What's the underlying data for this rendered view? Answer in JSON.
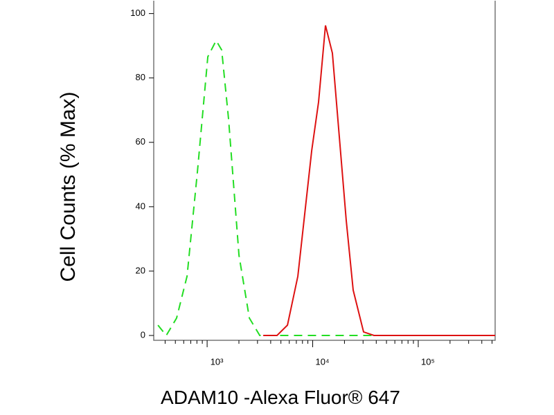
{
  "chart_data": {
    "type": "line",
    "xlabel": "ADAM10 -Alexa Fluor® 647",
    "ylabel": "Cell Counts (% Max)",
    "xscale": "log",
    "xlim": [
      312,
      535000
    ],
    "ylim": [
      -1.5,
      104
    ],
    "xticks": [
      {
        "value": 1000,
        "label": "10³"
      },
      {
        "value": 10000,
        "label": "10⁴"
      },
      {
        "value": 100000,
        "label": "10⁵"
      }
    ],
    "xminor_ticks": [
      400,
      500,
      600,
      700,
      800,
      900,
      2000,
      3000,
      4000,
      5000,
      6000,
      7000,
      8000,
      9000,
      20000,
      30000,
      40000,
      50000,
      60000,
      70000,
      80000,
      90000,
      200000,
      300000,
      400000,
      500000
    ],
    "yticks": [
      0,
      20,
      40,
      60,
      80,
      100
    ],
    "series": [
      {
        "color": "#22dd22",
        "dash": true,
        "x": [
          342,
          410,
          514,
          645,
          809,
          1015,
          1217,
          1373,
          1596,
          2003,
          2514,
          3150,
          535000
        ],
        "values": [
          3.2,
          0,
          5.4,
          18.4,
          50.9,
          86.6,
          91.6,
          88.7,
          67.1,
          24.9,
          5.4,
          0,
          0
        ]
      },
      {
        "color": "#dd1111",
        "dash": false,
        "x": [
          3398,
          4592,
          5764,
          7230,
          8411,
          9780,
          11370,
          13220,
          15380,
          17870,
          20790,
          24200,
          30340,
          38020,
          535000
        ],
        "values": [
          0,
          0,
          3.2,
          18.4,
          37.9,
          57.4,
          72.5,
          96.3,
          87.7,
          61.7,
          35.7,
          14.1,
          1.1,
          0,
          0
        ]
      }
    ]
  }
}
